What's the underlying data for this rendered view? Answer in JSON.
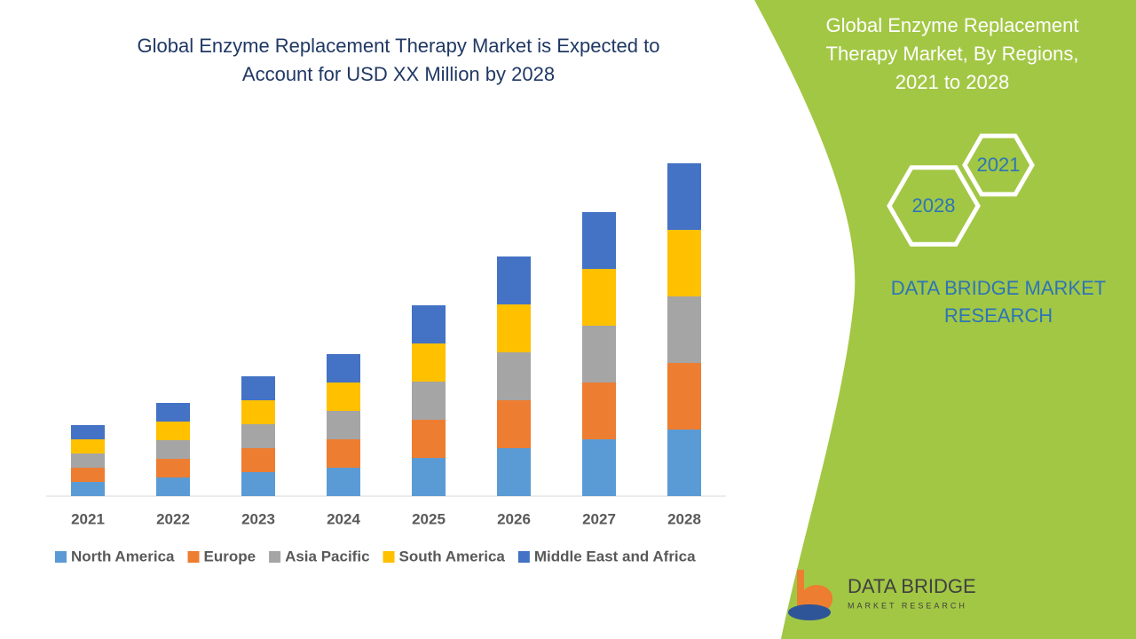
{
  "chart_data": {
    "type": "bar",
    "stacked": true,
    "title": "Global Enzyme Replacement Therapy Market is Expected to Account for USD XX Million by 2028",
    "categories": [
      "2021",
      "2022",
      "2023",
      "2024",
      "2025",
      "2026",
      "2027",
      "2028"
    ],
    "series": [
      {
        "name": "North America",
        "color": "#5b9bd5",
        "values": [
          1.6,
          2.1,
          2.7,
          3.2,
          4.3,
          5.4,
          6.4,
          7.5
        ]
      },
      {
        "name": "Europe",
        "color": "#ed7d31",
        "values": [
          1.6,
          2.1,
          2.7,
          3.2,
          4.3,
          5.4,
          6.4,
          7.5
        ]
      },
      {
        "name": "Asia Pacific",
        "color": "#a5a5a5",
        "values": [
          1.6,
          2.1,
          2.7,
          3.2,
          4.3,
          5.4,
          6.4,
          7.5
        ]
      },
      {
        "name": "South America",
        "color": "#ffc000",
        "values": [
          1.6,
          2.1,
          2.7,
          3.2,
          4.3,
          5.4,
          6.4,
          7.5
        ]
      },
      {
        "name": "Middle East and Africa",
        "color": "#4472c4",
        "values": [
          1.6,
          2.1,
          2.7,
          3.2,
          4.3,
          5.4,
          6.4,
          7.5
        ]
      }
    ],
    "ylim": [
      0,
      40
    ],
    "legend": "bottom"
  },
  "panel": {
    "title": "Global Enzyme Replacement Therapy Market, By Regions, 2021 to 2028",
    "hexagons": [
      "2021",
      "2028"
    ],
    "brand": "DATA BRIDGE MARKET RESEARCH",
    "logo": {
      "name": "DATA BRIDGE",
      "tagline": "MARKET RESEARCH"
    }
  }
}
